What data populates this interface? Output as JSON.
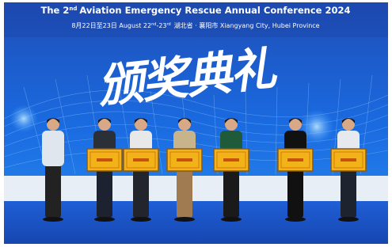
{
  "banner": {
    "title_parts": [
      "The 2",
      "nd",
      "Aviation Emergency Rescue Annual Conference 2024"
    ],
    "subtitle_parts": [
      "8月22日至23日 August 22",
      "nd",
      "-23",
      "rd",
      "湖北省 · 襄阳市 Xiangyang City, Hubei Province"
    ],
    "calligraphy": "颁奖典礼"
  }
}
